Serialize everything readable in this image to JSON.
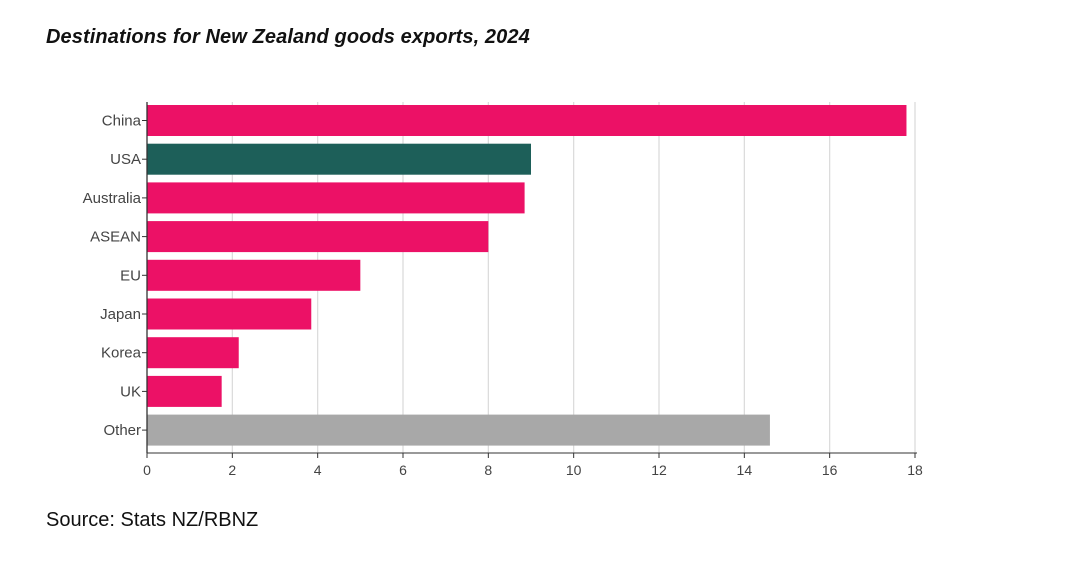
{
  "title": "Destinations for New Zealand goods exports, 2024",
  "source": "Source: Stats NZ/RBNZ",
  "colors": {
    "highlight": "#1d5f59",
    "default": "#ec1166",
    "other": "#a8a8a8",
    "grid": "#d9d9d9",
    "axis": "#333333"
  },
  "chart_data": {
    "type": "bar",
    "orientation": "horizontal",
    "title": "Destinations for New Zealand goods exports, 2024",
    "xlabel": "",
    "ylabel": "",
    "categories": [
      "China",
      "USA",
      "Australia",
      "ASEAN",
      "EU",
      "Japan",
      "Korea",
      "UK",
      "Other"
    ],
    "values": [
      17.8,
      9.0,
      8.85,
      8.0,
      5.0,
      3.85,
      2.15,
      1.75,
      14.6
    ],
    "bar_colors": [
      "#ec1166",
      "#1d5f59",
      "#ec1166",
      "#ec1166",
      "#ec1166",
      "#ec1166",
      "#ec1166",
      "#ec1166",
      "#a8a8a8"
    ],
    "xlim": [
      0,
      18
    ],
    "xticks": [
      0,
      2,
      4,
      6,
      8,
      10,
      12,
      14,
      16,
      18
    ],
    "xtick_labels": [
      "0",
      "2",
      "4",
      "6",
      "8",
      "10",
      "12",
      "14",
      "16",
      "18"
    ],
    "grid": "vertical",
    "legend": "none"
  }
}
